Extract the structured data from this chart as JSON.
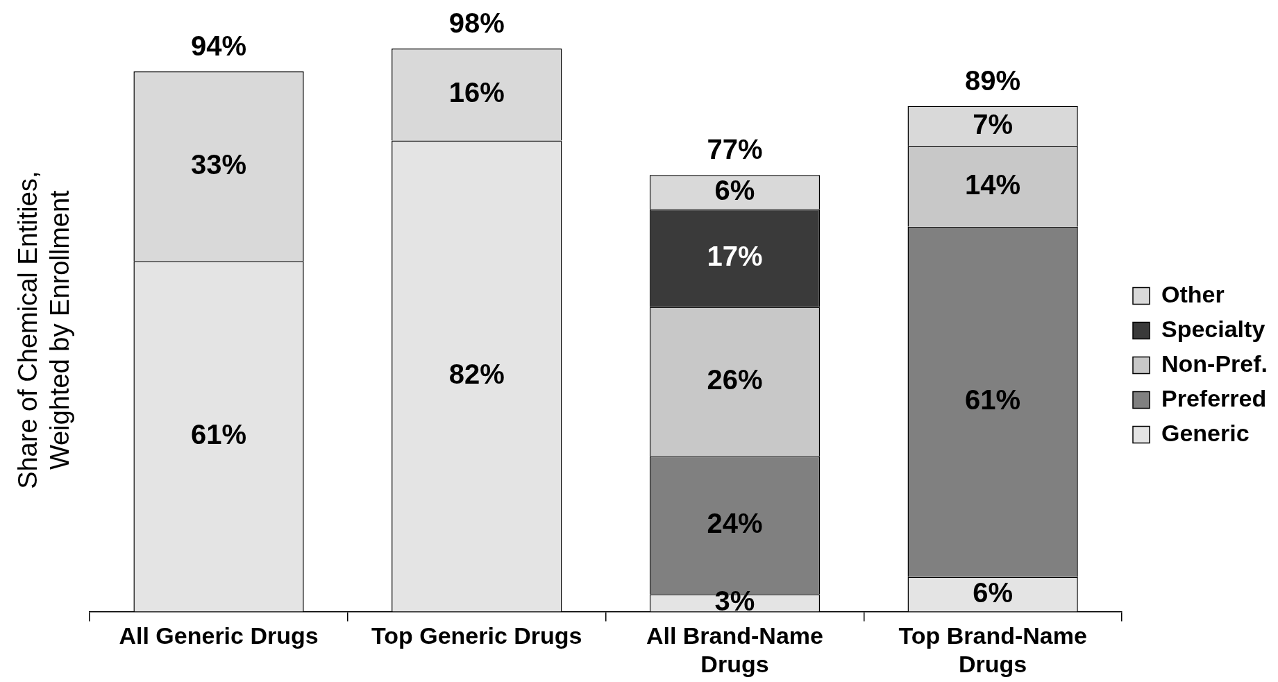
{
  "chart_data": {
    "type": "bar",
    "stacked": true,
    "legend": "right",
    "ylabel": "Share of Chemical Entities, Weighted by Enrollment",
    "categories": [
      "All Generic Drugs",
      "Top Generic Drugs",
      "All Brand-Name Drugs",
      "Top Brand-Name Drugs"
    ],
    "series": [
      {
        "name": "Generic",
        "color": "#e4e4e4",
        "values": [
          61,
          82,
          3,
          6
        ],
        "value_labels": [
          "61%",
          "82%",
          "3%",
          "6%"
        ]
      },
      {
        "name": "Preferred",
        "color": "#808080",
        "values": [
          null,
          null,
          24,
          61
        ],
        "value_labels": [
          null,
          null,
          "24%",
          "61%"
        ]
      },
      {
        "name": "Non-Pref.",
        "color": "#c8c8c8",
        "values": [
          null,
          null,
          26,
          14
        ],
        "value_labels": [
          null,
          null,
          "26%",
          "14%"
        ]
      },
      {
        "name": "Specialty",
        "color": "#3a3a3a",
        "values": [
          null,
          null,
          17,
          null
        ],
        "value_labels": [
          null,
          null,
          "17%",
          null
        ]
      },
      {
        "name": "Other",
        "color": "#d9d9d9",
        "values": [
          33,
          16,
          6,
          7
        ],
        "value_labels": [
          "33%",
          "16%",
          "6%",
          "7%"
        ]
      }
    ],
    "totals": [
      "94%",
      "98%",
      "77%",
      "89%"
    ]
  }
}
